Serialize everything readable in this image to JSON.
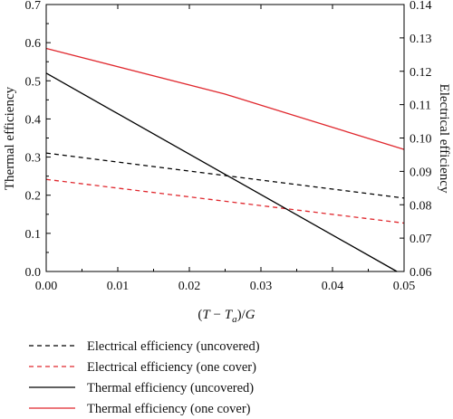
{
  "chart_data": {
    "type": "line",
    "xlabel": "(T − Tₐ)/G",
    "xlabel_parts": {
      "open": "(",
      "T1": "T",
      "minus": " − ",
      "T2": "T",
      "sub": "a",
      "close": ")/",
      "G": "G"
    },
    "ylabel_left": "Thermal efficiency",
    "ylabel_right": "Electrical efficiency",
    "xlim": [
      0,
      0.05
    ],
    "ylim_left": [
      0,
      0.7
    ],
    "ylim_right": [
      0.06,
      0.14
    ],
    "x_ticks": [
      "0.00",
      "0.01",
      "0.02",
      "0.03",
      "0.04",
      "0.05"
    ],
    "y_left_ticks": [
      "0.0",
      "0.1",
      "0.2",
      "0.3",
      "0.4",
      "0.5",
      "0.6",
      "0.7"
    ],
    "y_right_ticks": [
      "0.06",
      "0.07",
      "0.08",
      "0.09",
      "0.10",
      "0.11",
      "0.12",
      "0.13",
      "0.14"
    ],
    "legend_position": "below",
    "series": [
      {
        "name": "Electrical efficiency (uncovered)",
        "axis": "right",
        "color": "#000000",
        "dash": true,
        "x": [
          0,
          0.05
        ],
        "y": [
          0.0955,
          0.082
        ]
      },
      {
        "name": "Electrical efficiency (one cover)",
        "axis": "right",
        "color": "#e0282e",
        "dash": true,
        "x": [
          0,
          0.05
        ],
        "y": [
          0.0876,
          0.0745
        ]
      },
      {
        "name": "Thermal efficiency (uncovered)",
        "axis": "left",
        "color": "#000000",
        "dash": false,
        "x": [
          0,
          0.049
        ],
        "y": [
          0.52,
          0.0
        ]
      },
      {
        "name": "Thermal efficiency (one cover)",
        "axis": "left",
        "color": "#e0282e",
        "dash": false,
        "x": [
          0,
          0.025,
          0.05
        ],
        "y": [
          0.585,
          0.465,
          0.32
        ]
      }
    ]
  }
}
